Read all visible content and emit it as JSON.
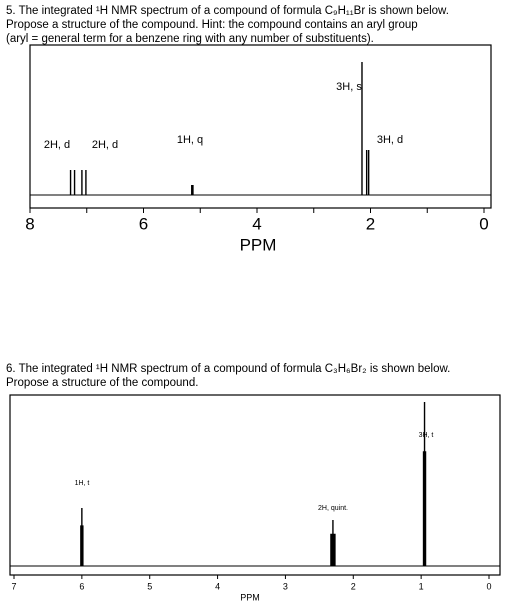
{
  "questions": [
    {
      "text": [
        "5. The integrated ¹H NMR spectrum of a compound of formula C₉H₁₁Br is shown below.",
        "Propose a structure of the compound.  Hint: the compound contains an aryl group",
        "(aryl = general term for a benzene ring with any number of substituents)."
      ],
      "spectrum": {
        "xlabel": "PPM",
        "xlim": [
          8,
          0
        ],
        "xticks": [
          8,
          6,
          4,
          2,
          0
        ],
        "minor_xticks": [
          7,
          5,
          3,
          1
        ],
        "ylim": [
          0,
          150
        ],
        "peaks": [
          {
            "label": "2H, d",
            "ppm": 7.25,
            "height": 25
          },
          {
            "label": "2H, d",
            "ppm": 7.05,
            "height": 25
          },
          {
            "label": "1H, q",
            "ppm": 5.15,
            "height": 10
          },
          {
            "label": "3H, s",
            "ppm": 2.15,
            "height": 133
          },
          {
            "label": "3H, d",
            "ppm": 2.05,
            "height": 45
          }
        ]
      }
    },
    {
      "text": [
        "6. The integrated ¹H NMR spectrum of a compound of formula C₃H₆Br₂ is shown below.",
        "Propose a structure of the compound."
      ],
      "spectrum": {
        "xlabel": "PPM",
        "xlim": [
          7,
          0
        ],
        "xticks": [
          7,
          6,
          5,
          4,
          3,
          2,
          1,
          0
        ],
        "minor_xticks": [],
        "ylim": [
          0,
          171
        ],
        "peaks": [
          {
            "label": "1H, t",
            "ppm": 6.0,
            "height": 58
          },
          {
            "label": "2H, quint.",
            "ppm": 2.3,
            "height": 46
          },
          {
            "label": "3H, t",
            "ppm": 0.95,
            "height": 164
          }
        ]
      }
    }
  ]
}
